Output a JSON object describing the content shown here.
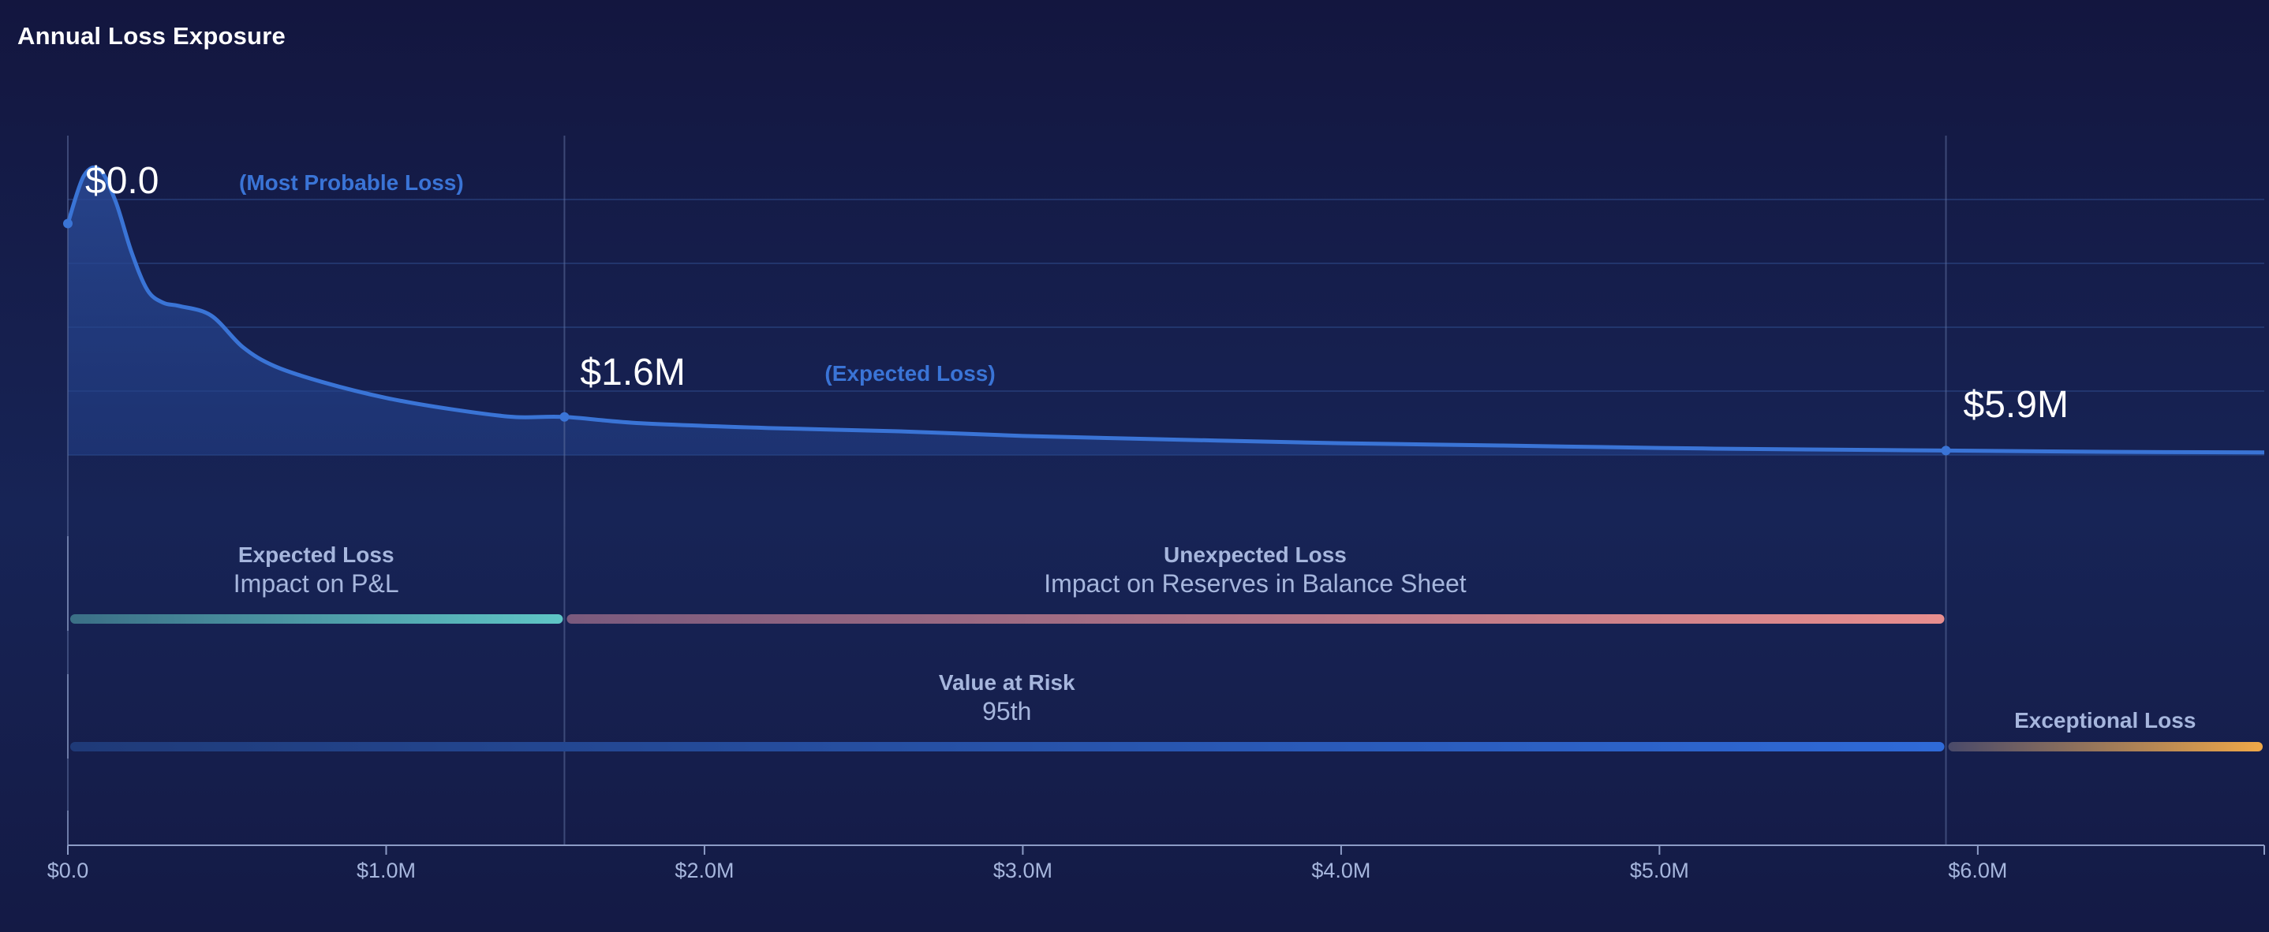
{
  "title": "Annual Loss Exposure",
  "chart_data": {
    "type": "area",
    "title": "Annual Loss Exposure",
    "xlabel": "",
    "ylabel": "",
    "x_unit": "$M",
    "xlim": [
      0,
      6.9
    ],
    "ylim": [
      0,
      1.0
    ],
    "grid": true,
    "x_ticks": [
      {
        "value": 0.0,
        "label": "$0.0"
      },
      {
        "value": 1.0,
        "label": "$1.0M"
      },
      {
        "value": 2.0,
        "label": "$2.0M"
      },
      {
        "value": 3.0,
        "label": "$3.0M"
      },
      {
        "value": 4.0,
        "label": "$4.0M"
      },
      {
        "value": 5.0,
        "label": "$5.0M"
      },
      {
        "value": 6.0,
        "label": "$6.0M"
      }
    ],
    "series": [
      {
        "color": "#3a74d6",
        "x": [
          0.0,
          0.05,
          0.1,
          0.15,
          0.2,
          0.25,
          0.3,
          0.35,
          0.45,
          0.55,
          0.65,
          0.8,
          1.0,
          1.2,
          1.4,
          1.56,
          1.8,
          2.2,
          2.6,
          3.0,
          3.5,
          4.0,
          4.5,
          5.0,
          5.5,
          5.9,
          6.4,
          6.9
        ],
        "y": [
          0.73,
          0.88,
          0.9,
          0.8,
          0.64,
          0.52,
          0.48,
          0.47,
          0.44,
          0.34,
          0.28,
          0.23,
          0.18,
          0.145,
          0.12,
          0.12,
          0.1,
          0.085,
          0.075,
          0.06,
          0.048,
          0.037,
          0.03,
          0.022,
          0.017,
          0.014,
          0.01,
          0.008
        ]
      }
    ],
    "markers": [
      {
        "x": 0.0,
        "y": 0.73,
        "label": "$0.0",
        "note": "(Most Probable Loss)"
      },
      {
        "x": 1.56,
        "y": 0.12,
        "label": "$1.6M",
        "note": "(Expected Loss)"
      },
      {
        "x": 5.9,
        "y": 0.014,
        "label": "$5.9M",
        "note": ""
      }
    ],
    "bands": [
      {
        "title": "Expected Loss",
        "subtitle": "Impact on P&L",
        "from": 0.0,
        "to": 1.56,
        "row": 1,
        "color_start": "#3b6f86",
        "color_end": "#5fc6c6"
      },
      {
        "title": "Unexpected Loss",
        "subtitle": "Impact on Reserves in Balance Sheet",
        "from": 1.56,
        "to": 5.9,
        "row": 1,
        "color_start": "#7a5a7d",
        "color_end": "#e88e8e"
      },
      {
        "title": "Value at Risk",
        "subtitle": "95th",
        "from": 0.0,
        "to": 5.9,
        "row": 2,
        "color_start": "#1f3a78",
        "color_end": "#2f6ad8"
      },
      {
        "title": "Exceptional Loss",
        "subtitle": "",
        "from": 5.9,
        "to": 6.9,
        "row": 2,
        "color_start": "#4a4a6a",
        "color_end": "#f0a848"
      }
    ],
    "colors": {
      "curve": "#3a74d6",
      "grid": "#2a4683",
      "axis": "#8d9cc6",
      "label": "#a6b6dd"
    }
  }
}
